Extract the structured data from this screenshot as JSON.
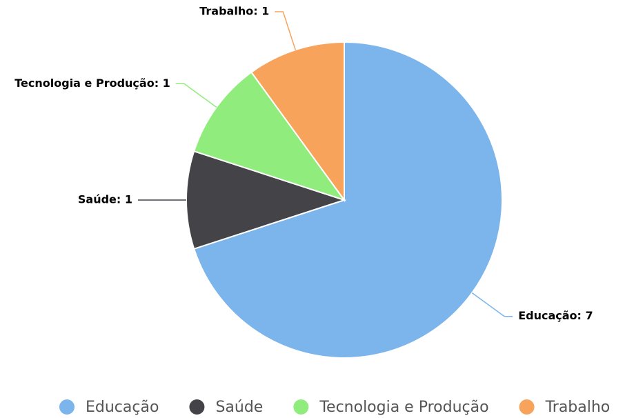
{
  "chart_data": {
    "type": "pie",
    "categories": [
      "Educação",
      "Saúde",
      "Tecnologia e Produção",
      "Trabalho"
    ],
    "values": [
      7,
      1,
      1,
      1
    ],
    "value_labels": [
      "Educação: 7",
      "Saúde: 1",
      "Tecnologia e Produção: 1",
      "Trabalho: 1"
    ],
    "colors": [
      "#7cb5ec",
      "#434348",
      "#90ed7d",
      "#f7a35c"
    ],
    "legend": "bottom"
  }
}
